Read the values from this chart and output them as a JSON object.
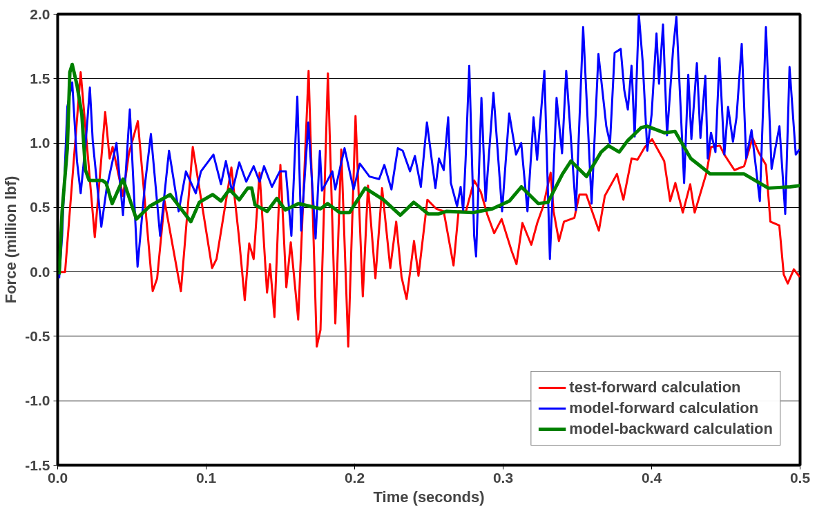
{
  "chart_data": {
    "type": "line",
    "xlabel": "Time (seconds)",
    "ylabel": "Force (million lbf)",
    "xlim": [
      0,
      0.5
    ],
    "ylim": [
      -1.5,
      2.0
    ],
    "xticks": [
      {
        "value": 0,
        "label": "0.0"
      },
      0.1,
      0.2,
      0.3,
      0.4,
      0.5
    ],
    "yticks": [
      -1.5,
      {
        "value": -1,
        "label": "-1.0"
      },
      -0.5,
      {
        "value": 0,
        "label": "0.0"
      },
      0.5,
      {
        "value": 1,
        "label": "1.0"
      },
      1.5,
      {
        "value": 2,
        "label": "2.0"
      }
    ],
    "grid": "y",
    "legend": "bottom right",
    "line_style": "solid",
    "marker": "none",
    "series": [
      {
        "name": "test-forward calculation",
        "color": "#ff0000",
        "x": [
          0,
          0.005,
          0.0155,
          0.025,
          0.032,
          0.035,
          0.037,
          0.044,
          0.048,
          0.054,
          0.064,
          0.067,
          0.072,
          0.083,
          0.091,
          0.104,
          0.107,
          0.117,
          0.122,
          0.126,
          0.129,
          0.132,
          0.136,
          0.141,
          0.143,
          0.146,
          0.15,
          0.154,
          0.157,
          0.162,
          0.169,
          0.1745,
          0.177,
          0.182,
          0.187,
          0.191,
          0.1957,
          0.2006,
          0.2055,
          0.209,
          0.214,
          0.2185,
          0.224,
          0.228,
          0.2316,
          0.235,
          0.24,
          0.243,
          0.249,
          0.255,
          0.26,
          0.2666,
          0.27,
          0.275,
          0.2805,
          0.285,
          0.2895,
          0.294,
          0.299,
          0.3058,
          0.309,
          0.313,
          0.319,
          0.323,
          0.327,
          0.332,
          0.334,
          0.3376,
          0.341,
          0.348,
          0.3514,
          0.356,
          0.3645,
          0.3685,
          0.3767,
          0.381,
          0.3865,
          0.3905,
          0.3955,
          0.4003,
          0.4085,
          0.4125,
          0.416,
          0.421,
          0.426,
          0.429,
          0.437,
          0.44,
          0.446,
          0.449,
          0.4558,
          0.4623,
          0.468,
          0.472,
          0.477,
          0.48,
          0.486,
          0.489,
          0.4917,
          0.4958,
          0.4998
        ],
        "values": [
          0.0,
          0.0,
          1.55,
          0.27,
          1.24,
          0.88,
          0.97,
          0.59,
          0.92,
          1.17,
          -0.15,
          -0.05,
          0.55,
          -0.15,
          0.97,
          0.03,
          0.1,
          0.81,
          0.28,
          -0.22,
          0.22,
          0.1,
          0.77,
          -0.16,
          0.06,
          -0.35,
          0.83,
          -0.12,
          0.23,
          -0.37,
          1.56,
          -0.58,
          -0.45,
          1.54,
          -0.4,
          0.95,
          -0.58,
          1.21,
          -0.19,
          0.67,
          -0.05,
          0.65,
          0.03,
          0.39,
          -0.04,
          -0.21,
          0.24,
          -0.03,
          0.56,
          0.49,
          0.47,
          0.05,
          0.47,
          0.47,
          0.71,
          0.62,
          0.44,
          0.3,
          0.41,
          0.16,
          0.06,
          0.38,
          0.21,
          0.38,
          0.51,
          0.77,
          0.47,
          0.24,
          0.39,
          0.42,
          0.6,
          0.6,
          0.32,
          0.59,
          0.76,
          0.56,
          0.88,
          0.87,
          0.97,
          1.03,
          0.86,
          0.55,
          0.69,
          0.46,
          0.68,
          0.46,
          0.77,
          0.97,
          0.98,
          0.91,
          0.79,
          0.82,
          1.04,
          0.93,
          0.83,
          0.39,
          0.36,
          -0.02,
          -0.09,
          0.02,
          -0.04
        ]
      },
      {
        "name": "model-forward calculation",
        "color": "#0000ff",
        "x": [
          0.001,
          0.003,
          0.0065,
          0.0098,
          0.013,
          0.0155,
          0.0187,
          0.0217,
          0.0236,
          0.0294,
          0.033,
          0.0396,
          0.044,
          0.0486,
          0.0538,
          0.0587,
          0.0628,
          0.069,
          0.075,
          0.0815,
          0.0864,
          0.093,
          0.0965,
          0.1049,
          0.11,
          0.1133,
          0.1175,
          0.1223,
          0.127,
          0.132,
          0.136,
          0.139,
          0.1443,
          0.1496,
          0.1537,
          0.1574,
          0.1614,
          0.164,
          0.1688,
          0.1737,
          0.1766,
          0.178,
          0.185,
          0.187,
          0.1932,
          0.1993,
          0.2035,
          0.21,
          0.2165,
          0.22,
          0.2248,
          0.2291,
          0.2324,
          0.2373,
          0.2406,
          0.2446,
          0.2487,
          0.2544,
          0.2568,
          0.26,
          0.263,
          0.2648,
          0.269,
          0.2714,
          0.2731,
          0.2747,
          0.2772,
          0.2805,
          0.2818,
          0.2854,
          0.2882,
          0.2935,
          0.2993,
          0.3041,
          0.3087,
          0.3122,
          0.3164,
          0.3205,
          0.3229,
          0.3278,
          0.3315,
          0.336,
          0.3397,
          0.3425,
          0.349,
          0.3539,
          0.3596,
          0.3642,
          0.3695,
          0.372,
          0.3751,
          0.3792,
          0.3816,
          0.384,
          0.3865,
          0.3886,
          0.3914,
          0.394,
          0.3971,
          0.4,
          0.4033,
          0.405,
          0.4077,
          0.4104,
          0.4145,
          0.4167,
          0.419,
          0.4219,
          0.4247,
          0.4268,
          0.4305,
          0.4329,
          0.4362,
          0.4378,
          0.44,
          0.443,
          0.4457,
          0.449,
          0.4515,
          0.4548,
          0.4572,
          0.4607,
          0.4637,
          0.4673,
          0.4729,
          0.477,
          0.4808,
          0.4861,
          0.49,
          0.4929,
          0.4971,
          0.4995
        ],
        "values": [
          -0.05,
          0.28,
          1.28,
          1.47,
          0.86,
          0.61,
          0.98,
          1.43,
          1.02,
          0.35,
          0.65,
          1.0,
          0.44,
          1.26,
          0.04,
          0.67,
          1.07,
          0.28,
          0.94,
          0.47,
          0.78,
          0.61,
          0.78,
          0.91,
          0.68,
          0.86,
          0.62,
          0.85,
          0.7,
          0.82,
          0.7,
          0.82,
          0.66,
          0.78,
          0.78,
          0.28,
          1.36,
          0.32,
          1.16,
          0.26,
          0.94,
          0.63,
          0.78,
          0.64,
          0.96,
          0.64,
          0.84,
          0.74,
          0.72,
          0.83,
          0.64,
          0.96,
          0.94,
          0.78,
          0.9,
          0.66,
          1.16,
          0.65,
          0.88,
          0.79,
          1.2,
          0.69,
          0.51,
          0.66,
          0.47,
          0.86,
          1.6,
          0.28,
          0.12,
          1.35,
          0.55,
          1.39,
          0.47,
          1.23,
          0.91,
          1.0,
          0.47,
          1.2,
          0.87,
          1.56,
          0.1,
          1.35,
          0.92,
          1.56,
          0.48,
          1.9,
          0.53,
          1.69,
          1.13,
          1.0,
          1.7,
          1.73,
          1.41,
          1.26,
          1.6,
          1.05,
          2.0,
          1.63,
          0.94,
          1.22,
          1.85,
          1.46,
          1.92,
          1.06,
          1.73,
          1.98,
          1.41,
          0.69,
          1.53,
          1.03,
          1.62,
          1.04,
          1.52,
          0.88,
          1.08,
          0.93,
          1.66,
          0.91,
          1.28,
          1.01,
          1.2,
          1.77,
          0.88,
          1.1,
          0.55,
          1.9,
          0.8,
          1.13,
          0.45,
          1.59,
          0.91,
          0.95
        ]
      },
      {
        "name": "model-backward calculation",
        "color": "#008000",
        "x": [
          0.001,
          0.003,
          0.0065,
          0.0082,
          0.0098,
          0.013,
          0.0163,
          0.0187,
          0.0212,
          0.03,
          0.0326,
          0.0367,
          0.044,
          0.053,
          0.062,
          0.0758,
          0.0897,
          0.0954,
          0.1044,
          0.11,
          0.1157,
          0.1223,
          0.128,
          0.1307,
          0.1329,
          0.1411,
          0.1476,
          0.1533,
          0.1622,
          0.177,
          0.1818,
          0.19,
          0.1965,
          0.2071,
          0.2194,
          0.2308,
          0.2398,
          0.2496,
          0.2566,
          0.262,
          0.2797,
          0.2928,
          0.3042,
          0.3123,
          0.3237,
          0.3302,
          0.34,
          0.3457,
          0.3562,
          0.366,
          0.3709,
          0.3782,
          0.384,
          0.393,
          0.3971,
          0.4085,
          0.4158,
          0.4264,
          0.4395,
          0.4623,
          0.4786,
          0.4933,
          0.5
        ],
        "values": [
          -0.02,
          0.47,
          0.96,
          1.55,
          1.61,
          1.45,
          1.22,
          0.79,
          0.71,
          0.71,
          0.69,
          0.53,
          0.72,
          0.41,
          0.51,
          0.6,
          0.39,
          0.54,
          0.6,
          0.55,
          0.64,
          0.56,
          0.65,
          0.65,
          0.52,
          0.47,
          0.57,
          0.48,
          0.53,
          0.49,
          0.53,
          0.46,
          0.46,
          0.65,
          0.56,
          0.44,
          0.54,
          0.45,
          0.45,
          0.47,
          0.46,
          0.49,
          0.55,
          0.66,
          0.53,
          0.54,
          0.76,
          0.86,
          0.74,
          0.93,
          0.98,
          0.93,
          1.02,
          1.12,
          1.13,
          1.08,
          1.09,
          0.88,
          0.76,
          0.76,
          0.65,
          0.66,
          0.67
        ]
      }
    ]
  }
}
